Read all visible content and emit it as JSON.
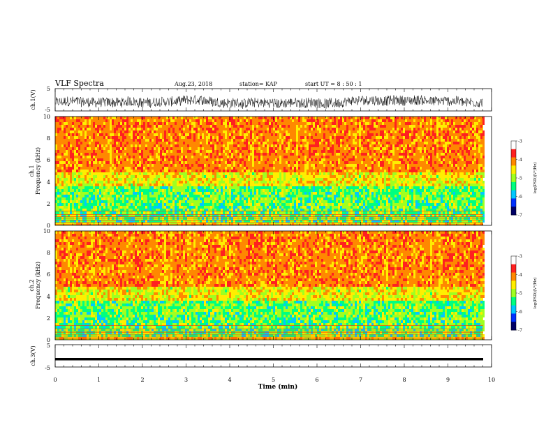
{
  "header": {
    "title": "VLF Spectra",
    "date": "Aug.23, 2018",
    "station": "station= KAP",
    "start": "start  UT =   8 : 50 : 1"
  },
  "colorbar": {
    "label": "log(PSD)(V²/Hz)",
    "ticks": [
      "-3",
      "-4",
      "-5",
      "-6",
      "-7"
    ],
    "colors": [
      "#ffffff",
      "#ff2020",
      "#ff8800",
      "#ffee00",
      "#a0ff20",
      "#00ff80",
      "#00c8ff",
      "#0030ff",
      "#000066"
    ]
  },
  "chart_data": [
    {
      "type": "line",
      "panel": "ch1-waveform",
      "ylabel": "ch.1(V)",
      "ylim": [
        -5,
        5
      ],
      "yticks": [
        "5",
        "-5"
      ],
      "xlim": [
        0,
        10
      ],
      "description": "dense noisy waveform fluctuating roughly between -4 and 2 V"
    },
    {
      "type": "heatmap",
      "panel": "ch1-spectrogram",
      "ylabel": "ch.1\nFrequency (kHz)",
      "ylim": [
        0,
        10
      ],
      "yticks": [
        "0",
        "2",
        "4",
        "6",
        "8",
        "10"
      ],
      "xlim": [
        0,
        9.85
      ],
      "value_range": [
        -7,
        -3
      ]
    },
    {
      "type": "heatmap",
      "panel": "ch2-spectrogram",
      "ylabel": "ch.2\nFrequency (kHz)",
      "ylim": [
        0,
        10
      ],
      "yticks": [
        "0",
        "2",
        "4",
        "6",
        "8",
        "10"
      ],
      "xlim": [
        0,
        9.85
      ],
      "value_range": [
        -7,
        -3
      ]
    },
    {
      "type": "line",
      "panel": "ch3-waveform",
      "ylabel": "ch.3(V)",
      "ylim": [
        -5,
        5
      ],
      "yticks": [
        "5",
        "-5"
      ],
      "constant_value": -1.5
    }
  ],
  "xaxis": {
    "label": "Time (min)",
    "ticks": [
      "0",
      "1",
      "2",
      "3",
      "4",
      "5",
      "6",
      "7",
      "8",
      "9",
      "10"
    ],
    "xlim": [
      0,
      10
    ]
  }
}
